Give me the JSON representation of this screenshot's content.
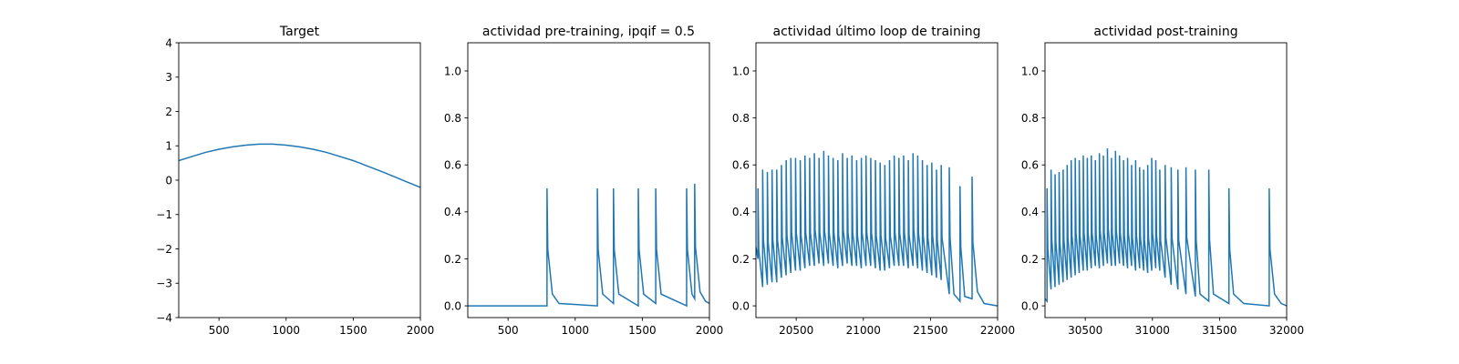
{
  "chart_data": [
    {
      "type": "line",
      "title": "Target",
      "color": "#1f77b4",
      "x": [
        200,
        300,
        400,
        500,
        600,
        700,
        800,
        900,
        1000,
        1100,
        1200,
        1300,
        1400,
        1500,
        1600,
        1700,
        1800,
        1900,
        2000
      ],
      "values": [
        0.57,
        0.69,
        0.81,
        0.9,
        0.97,
        1.02,
        1.05,
        1.05,
        1.02,
        0.97,
        0.9,
        0.81,
        0.69,
        0.57,
        0.42,
        0.27,
        0.11,
        -0.05,
        -0.21
      ],
      "xlim": [
        200,
        2000
      ],
      "ylim": [
        -4,
        4
      ],
      "xticks": [
        500,
        1000,
        1500,
        2000
      ],
      "yticks": [
        {
          "value": -4,
          "label": "−4"
        },
        {
          "value": -3,
          "label": "−3"
        },
        {
          "value": -2,
          "label": "−2"
        },
        {
          "value": -1,
          "label": "−1"
        },
        0,
        1,
        2,
        3,
        4
      ]
    },
    {
      "type": "line",
      "title": "actividad pre-training, ipqif = 0.5",
      "color": "#1f77b4",
      "x": [
        200,
        790,
        790,
        796,
        830,
        880,
        1165,
        1165,
        1171,
        1205,
        1285,
        1285,
        1291,
        1325,
        1470,
        1470,
        1476,
        1510,
        1600,
        1600,
        1606,
        1640,
        1830,
        1830,
        1836,
        1870,
        1890,
        1890,
        1896,
        1930,
        1970,
        2000
      ],
      "values": [
        0,
        0,
        0.5,
        0.24,
        0.05,
        0.01,
        0,
        0.5,
        0.24,
        0.05,
        0.01,
        0.5,
        0.24,
        0.05,
        0,
        0.5,
        0.24,
        0.05,
        0.01,
        0.5,
        0.24,
        0.05,
        0,
        0.5,
        0.24,
        0.05,
        0.03,
        0.52,
        0.25,
        0.06,
        0.02,
        0.01
      ],
      "xlim": [
        200,
        2000
      ],
      "ylim": [
        -0.05,
        1.12
      ],
      "xticks": [
        500,
        1000,
        1500,
        2000
      ],
      "yticks": [
        {
          "value": 0,
          "label": "0.0"
        },
        0.2,
        0.4,
        0.6,
        0.8,
        {
          "value": 1,
          "label": "1.0"
        }
      ]
    },
    {
      "type": "line",
      "title": "actividad último loop de training",
      "color": "#1f77b4",
      "x": [
        20200,
        20215,
        20215,
        20221,
        20250,
        20250,
        20256,
        20285,
        20285,
        20291,
        20320,
        20320,
        20326,
        20355,
        20355,
        20361,
        20390,
        20390,
        20396,
        20425,
        20425,
        20431,
        20460,
        20460,
        20466,
        20495,
        20495,
        20501,
        20530,
        20530,
        20536,
        20565,
        20565,
        20571,
        20600,
        20600,
        20606,
        20635,
        20635,
        20641,
        20670,
        20670,
        20676,
        20705,
        20705,
        20711,
        20740,
        20740,
        20746,
        20775,
        20775,
        20781,
        20810,
        20810,
        20816,
        20845,
        20845,
        20851,
        20880,
        20880,
        20886,
        20915,
        20915,
        20921,
        20950,
        20950,
        20956,
        20985,
        20985,
        20991,
        21020,
        21020,
        21026,
        21055,
        21055,
        21061,
        21090,
        21090,
        21096,
        21125,
        21125,
        21131,
        21160,
        21160,
        21166,
        21195,
        21195,
        21201,
        21230,
        21230,
        21236,
        21265,
        21265,
        21271,
        21300,
        21300,
        21306,
        21335,
        21335,
        21341,
        21370,
        21370,
        21376,
        21405,
        21405,
        21411,
        21440,
        21440,
        21446,
        21475,
        21475,
        21481,
        21510,
        21510,
        21516,
        21545,
        21545,
        21551,
        21580,
        21580,
        21586,
        21640,
        21640,
        21646,
        21675,
        21720,
        21720,
        21726,
        21755,
        21810,
        21810,
        21816,
        21850,
        21900,
        22000
      ],
      "values": [
        0.25,
        0.2,
        0.5,
        0.24,
        0.08,
        0.58,
        0.28,
        0.09,
        0.57,
        0.27,
        0.1,
        0.58,
        0.28,
        0.1,
        0.58,
        0.28,
        0.12,
        0.6,
        0.29,
        0.13,
        0.62,
        0.3,
        0.14,
        0.63,
        0.31,
        0.15,
        0.63,
        0.31,
        0.15,
        0.62,
        0.3,
        0.16,
        0.64,
        0.31,
        0.17,
        0.63,
        0.31,
        0.17,
        0.65,
        0.32,
        0.18,
        0.63,
        0.31,
        0.17,
        0.66,
        0.32,
        0.18,
        0.64,
        0.31,
        0.17,
        0.63,
        0.31,
        0.16,
        0.62,
        0.3,
        0.17,
        0.65,
        0.32,
        0.18,
        0.63,
        0.31,
        0.17,
        0.64,
        0.31,
        0.17,
        0.62,
        0.3,
        0.16,
        0.63,
        0.31,
        0.17,
        0.64,
        0.31,
        0.17,
        0.63,
        0.31,
        0.16,
        0.62,
        0.3,
        0.15,
        0.61,
        0.3,
        0.15,
        0.6,
        0.29,
        0.16,
        0.62,
        0.3,
        0.17,
        0.64,
        0.31,
        0.17,
        0.63,
        0.31,
        0.17,
        0.64,
        0.31,
        0.16,
        0.62,
        0.3,
        0.17,
        0.65,
        0.32,
        0.16,
        0.64,
        0.31,
        0.15,
        0.62,
        0.3,
        0.14,
        0.6,
        0.29,
        0.13,
        0.61,
        0.3,
        0.12,
        0.58,
        0.28,
        0.11,
        0.6,
        0.29,
        0.05,
        0.59,
        0.29,
        0.05,
        0.02,
        0.51,
        0.25,
        0.04,
        0.03,
        0.55,
        0.27,
        0.06,
        0.01,
        0
      ],
      "xlim": [
        20200,
        22000
      ],
      "ylim": [
        -0.05,
        1.12
      ],
      "xticks": [
        20500,
        21000,
        21500,
        22000
      ],
      "yticks": [
        {
          "value": 0,
          "label": "0.0"
        },
        0.2,
        0.4,
        0.6,
        0.8,
        {
          "value": 1,
          "label": "1.0"
        }
      ]
    },
    {
      "type": "line",
      "title": "actividad post-training",
      "color": "#1f77b4",
      "x": [
        30200,
        30215,
        30215,
        30221,
        30245,
        30245,
        30251,
        30275,
        30275,
        30281,
        30305,
        30305,
        30311,
        30335,
        30335,
        30341,
        30365,
        30365,
        30371,
        30395,
        30395,
        30401,
        30425,
        30425,
        30431,
        30455,
        30455,
        30461,
        30485,
        30485,
        30491,
        30515,
        30515,
        30521,
        30545,
        30545,
        30551,
        30575,
        30575,
        30581,
        30605,
        30605,
        30611,
        30635,
        30635,
        30641,
        30665,
        30665,
        30671,
        30695,
        30695,
        30701,
        30725,
        30725,
        30731,
        30755,
        30755,
        30761,
        30785,
        30785,
        30791,
        30815,
        30815,
        30821,
        30845,
        30845,
        30851,
        30875,
        30875,
        30881,
        30905,
        30905,
        30911,
        30935,
        30935,
        30941,
        30965,
        30965,
        30971,
        30995,
        30995,
        31001,
        31025,
        31025,
        31031,
        31055,
        31055,
        31061,
        31095,
        31095,
        31101,
        31140,
        31140,
        31146,
        31190,
        31190,
        31196,
        31250,
        31250,
        31256,
        31320,
        31320,
        31326,
        31355,
        31420,
        31420,
        31426,
        31455,
        31570,
        31570,
        31576,
        31605,
        31680,
        31870,
        31870,
        31876,
        31910,
        31960,
        32000
      ],
      "values": [
        0.03,
        0.02,
        0.5,
        0.24,
        0.07,
        0.58,
        0.28,
        0.08,
        0.56,
        0.27,
        0.09,
        0.57,
        0.27,
        0.1,
        0.58,
        0.28,
        0.11,
        0.6,
        0.29,
        0.12,
        0.62,
        0.3,
        0.13,
        0.63,
        0.31,
        0.14,
        0.62,
        0.3,
        0.15,
        0.64,
        0.31,
        0.15,
        0.63,
        0.31,
        0.16,
        0.64,
        0.31,
        0.17,
        0.62,
        0.3,
        0.16,
        0.65,
        0.32,
        0.17,
        0.64,
        0.31,
        0.18,
        0.67,
        0.33,
        0.17,
        0.63,
        0.31,
        0.17,
        0.66,
        0.32,
        0.18,
        0.64,
        0.31,
        0.17,
        0.62,
        0.3,
        0.16,
        0.63,
        0.31,
        0.17,
        0.6,
        0.29,
        0.15,
        0.62,
        0.3,
        0.16,
        0.59,
        0.29,
        0.15,
        0.58,
        0.28,
        0.14,
        0.6,
        0.29,
        0.15,
        0.63,
        0.31,
        0.16,
        0.62,
        0.3,
        0.15,
        0.58,
        0.28,
        0.12,
        0.6,
        0.29,
        0.09,
        0.59,
        0.29,
        0.07,
        0.58,
        0.28,
        0.05,
        0.59,
        0.29,
        0.04,
        0.58,
        0.28,
        0.05,
        0.02,
        0.58,
        0.28,
        0.05,
        0.01,
        0.5,
        0.24,
        0.05,
        0.01,
        0,
        0.5,
        0.24,
        0.05,
        0.01,
        0
      ],
      "xlim": [
        30200,
        32000
      ],
      "ylim": [
        -0.05,
        1.12
      ],
      "xticks": [
        30500,
        31000,
        31500,
        32000
      ],
      "yticks": [
        {
          "value": 0,
          "label": "0.0"
        },
        0.2,
        0.4,
        0.6,
        0.8,
        {
          "value": 1,
          "label": "1.0"
        }
      ]
    }
  ]
}
